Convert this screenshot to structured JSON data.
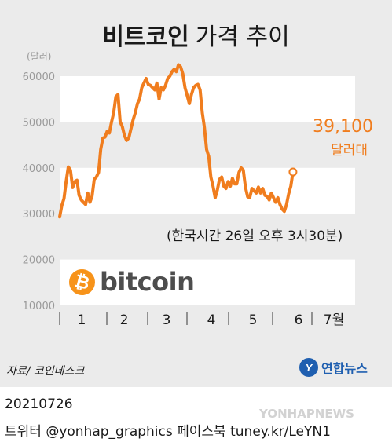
{
  "title": {
    "bold": "비트코인",
    "light": "가격 추이"
  },
  "chart_data": {
    "type": "line",
    "unit_label": "(달러)",
    "y_ticks": [
      60000,
      50000,
      40000,
      30000,
      20000,
      10000
    ],
    "ylim": [
      10000,
      63000
    ],
    "x_labels": [
      "1",
      "2",
      "3",
      "4",
      "5",
      "6",
      "7월"
    ],
    "x_range": [
      0,
      6.82
    ],
    "line_color": "#f07d1e",
    "series": [
      {
        "values": [
          [
            0.0,
            29300
          ],
          [
            0.05,
            31800
          ],
          [
            0.1,
            33300
          ],
          [
            0.15,
            37000
          ],
          [
            0.2,
            40200
          ],
          [
            0.25,
            39500
          ],
          [
            0.3,
            35700
          ],
          [
            0.35,
            37000
          ],
          [
            0.4,
            37300
          ],
          [
            0.45,
            34000
          ],
          [
            0.5,
            33000
          ],
          [
            0.55,
            32500
          ],
          [
            0.6,
            32000
          ],
          [
            0.65,
            34500
          ],
          [
            0.7,
            32500
          ],
          [
            0.75,
            33800
          ],
          [
            0.8,
            37500
          ],
          [
            0.85,
            38000
          ],
          [
            0.9,
            39000
          ],
          [
            0.95,
            44000
          ],
          [
            1.0,
            46500
          ],
          [
            1.05,
            46700
          ],
          [
            1.1,
            48000
          ],
          [
            1.15,
            47600
          ],
          [
            1.2,
            50000
          ],
          [
            1.25,
            52000
          ],
          [
            1.3,
            55500
          ],
          [
            1.35,
            56000
          ],
          [
            1.4,
            50000
          ],
          [
            1.45,
            49000
          ],
          [
            1.5,
            47000
          ],
          [
            1.55,
            46000
          ],
          [
            1.6,
            46500
          ],
          [
            1.65,
            48500
          ],
          [
            1.7,
            50500
          ],
          [
            1.75,
            52000
          ],
          [
            1.8,
            54000
          ],
          [
            1.85,
            55000
          ],
          [
            1.9,
            57500
          ],
          [
            1.95,
            58500
          ],
          [
            2.0,
            59500
          ],
          [
            2.05,
            58200
          ],
          [
            2.1,
            58000
          ],
          [
            2.15,
            57500
          ],
          [
            2.2,
            57000
          ],
          [
            2.25,
            58500
          ],
          [
            2.3,
            55000
          ],
          [
            2.35,
            57500
          ],
          [
            2.4,
            57000
          ],
          [
            2.45,
            58000
          ],
          [
            2.5,
            59500
          ],
          [
            2.55,
            60000
          ],
          [
            2.6,
            61000
          ],
          [
            2.65,
            61500
          ],
          [
            2.7,
            61000
          ],
          [
            2.75,
            62500
          ],
          [
            2.8,
            62000
          ],
          [
            2.85,
            60500
          ],
          [
            2.9,
            57500
          ],
          [
            2.95,
            55800
          ],
          [
            3.0,
            54000
          ],
          [
            3.05,
            56000
          ],
          [
            3.1,
            57500
          ],
          [
            3.15,
            58000
          ],
          [
            3.2,
            58200
          ],
          [
            3.25,
            57000
          ],
          [
            3.3,
            52000
          ],
          [
            3.35,
            48800
          ],
          [
            3.4,
            44000
          ],
          [
            3.45,
            42500
          ],
          [
            3.5,
            38000
          ],
          [
            3.55,
            36000
          ],
          [
            3.6,
            33500
          ],
          [
            3.65,
            35200
          ],
          [
            3.7,
            37500
          ],
          [
            3.75,
            38000
          ],
          [
            3.8,
            36000
          ],
          [
            3.85,
            35500
          ],
          [
            3.9,
            37000
          ],
          [
            3.95,
            36000
          ],
          [
            4.0,
            37700
          ],
          [
            4.05,
            36500
          ],
          [
            4.1,
            36500
          ],
          [
            4.15,
            39000
          ],
          [
            4.2,
            40000
          ],
          [
            4.25,
            39500
          ],
          [
            4.3,
            35800
          ],
          [
            4.35,
            33700
          ],
          [
            4.4,
            33500
          ],
          [
            4.45,
            35500
          ],
          [
            4.5,
            35000
          ],
          [
            4.55,
            34500
          ],
          [
            4.6,
            35800
          ],
          [
            4.65,
            34500
          ],
          [
            4.7,
            35500
          ],
          [
            4.75,
            34000
          ],
          [
            4.8,
            33800
          ],
          [
            4.85,
            33000
          ],
          [
            4.9,
            34500
          ],
          [
            4.95,
            33500
          ],
          [
            5.0,
            32500
          ],
          [
            5.05,
            33500
          ],
          [
            5.1,
            32000
          ],
          [
            5.15,
            31000
          ],
          [
            5.2,
            30500
          ],
          [
            5.25,
            32000
          ],
          [
            5.3,
            34300
          ],
          [
            5.35,
            36000
          ],
          [
            5.4,
            39100
          ]
        ]
      }
    ],
    "x_positions": [
      0.3,
      1.2,
      2.15,
      3.15,
      4.15,
      5.15,
      6.15
    ],
    "annotation": {
      "value": "39,100",
      "unit": "달러대"
    }
  },
  "timestamp_note": "(한국시간 26일 오후 3시30분)",
  "bitcoin_logo": {
    "symbol": "₿",
    "word": "bitcoin",
    "color": "#f7931a"
  },
  "source": "자료/ 코인데스크",
  "agency": {
    "mark": "Y",
    "name": "연합뉴스",
    "color": "#1f5fb0"
  },
  "date_line": "20210726",
  "credit_line": "트위터 @yonhap_graphics  페이스북 tuney.kr/LeYN1",
  "watermark": "YONHAPNEWS"
}
